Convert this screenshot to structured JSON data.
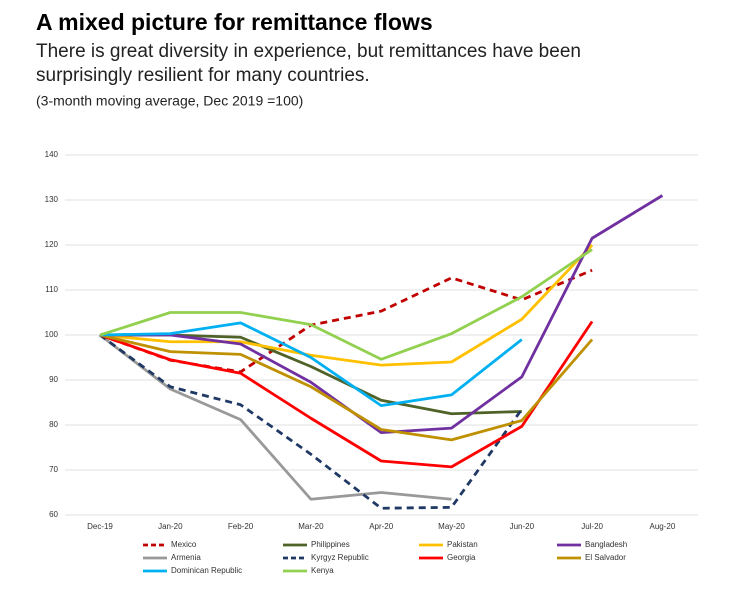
{
  "chart_data": {
    "type": "line",
    "title": "A mixed picture for remittance flows",
    "subtitle": [
      "There is great diversity in experience, but remittances have been",
      "surprisingly resilient for many countries."
    ],
    "note": "(3-month moving average, Dec 2019 =100)",
    "categories": [
      "Dec-19",
      "Jan-20",
      "Feb-20",
      "Mar-20",
      "Apr-20",
      "May-20",
      "Jun-20",
      "Jul-20",
      "Aug-20"
    ],
    "ylim": [
      60,
      140
    ],
    "yticks": [
      60,
      70,
      80,
      90,
      100,
      110,
      120,
      130,
      140
    ],
    "grid": true,
    "series": [
      {
        "name": "Mexico",
        "color": "#c00000",
        "dashed": true,
        "values": [
          100,
          94.4,
          91.8,
          102.2,
          105.3,
          112.7,
          107.8,
          114.4,
          null
        ]
      },
      {
        "name": "Philippines",
        "color": "#4f6228",
        "dashed": false,
        "values": [
          100,
          100,
          99.5,
          93,
          85.5,
          82.5,
          83,
          null,
          null
        ]
      },
      {
        "name": "Pakistan",
        "color": "#ffc000",
        "dashed": false,
        "values": [
          100,
          98.5,
          98.5,
          95.5,
          93.3,
          94,
          103.5,
          120,
          null
        ]
      },
      {
        "name": "Bangladesh",
        "color": "#7030a0",
        "dashed": false,
        "values": [
          100,
          100,
          98,
          89.5,
          78.3,
          79.3,
          90.7,
          121.5,
          131
        ]
      },
      {
        "name": "Armenia",
        "color": "#999999",
        "dashed": false,
        "values": [
          100,
          88,
          81.2,
          63.5,
          65,
          63.5,
          null,
          null,
          null
        ]
      },
      {
        "name": "Kyrgyz Republic",
        "color": "#1f3864",
        "dashed": true,
        "values": [
          100,
          88.5,
          84.5,
          73.5,
          61.5,
          61.7,
          83.5,
          null,
          null
        ]
      },
      {
        "name": "Georgia",
        "color": "#ff0000",
        "dashed": false,
        "values": [
          100,
          94.5,
          91.5,
          81.5,
          72,
          70.7,
          79.7,
          103,
          null
        ]
      },
      {
        "name": "El Salvador",
        "color": "#bf9000",
        "dashed": false,
        "values": [
          100,
          96.3,
          95.7,
          88.5,
          79,
          76.7,
          81,
          99,
          null
        ]
      },
      {
        "name": "Dominican Republic",
        "color": "#00b0f0",
        "dashed": false,
        "values": [
          100,
          100.3,
          102.7,
          95,
          84.3,
          86.7,
          99,
          null,
          null
        ]
      },
      {
        "name": "Kenya",
        "color": "#92d050",
        "dashed": false,
        "values": [
          100,
          105,
          105,
          102.3,
          94.6,
          100.3,
          108.5,
          119,
          null
        ]
      }
    ]
  }
}
